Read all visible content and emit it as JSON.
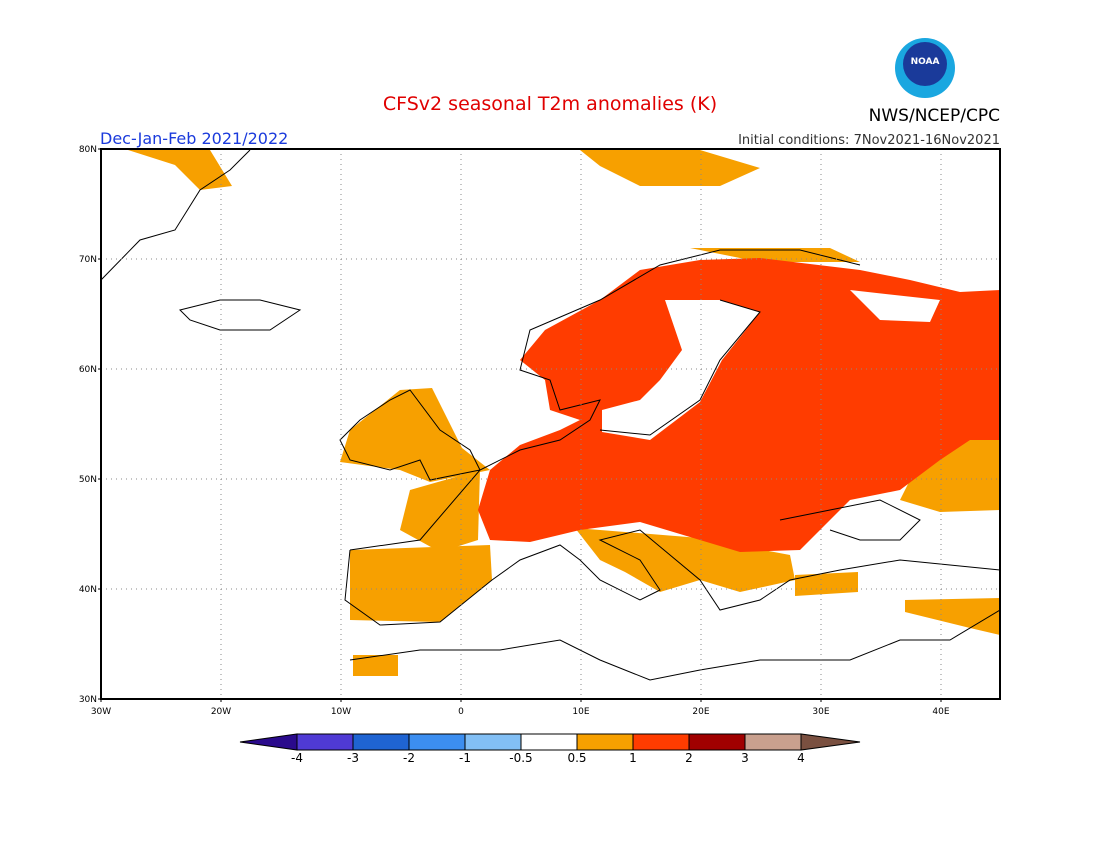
{
  "header": {
    "title": "CFSv2 seasonal T2m anomalies (K)",
    "agency": "NWS/NCEP/CPC",
    "logo": "NOAA",
    "period": "Dec-Jan-Feb 2021/2022",
    "initial_conditions": "Initial conditions: 7Nov2021-16Nov2021"
  },
  "map": {
    "lat_labels": [
      "80N",
      "70N",
      "60N",
      "50N",
      "40N",
      "30N"
    ],
    "lon_labels": [
      "30W",
      "20W",
      "10W",
      "0",
      "10E",
      "20E",
      "30E",
      "40E"
    ]
  },
  "colorbar": {
    "labels": [
      "-4",
      "-3",
      "-2",
      "-1",
      "-0.5",
      "0.5",
      "1",
      "2",
      "3",
      "4"
    ],
    "colors": [
      "#2a0a8c",
      "#4f3ad4",
      "#1f64d2",
      "#3c8ef0",
      "#82bff5",
      "#ffffff",
      "#f7a000",
      "#ff3c00",
      "#a00000",
      "#c9a08e",
      "#7a5040"
    ]
  }
}
